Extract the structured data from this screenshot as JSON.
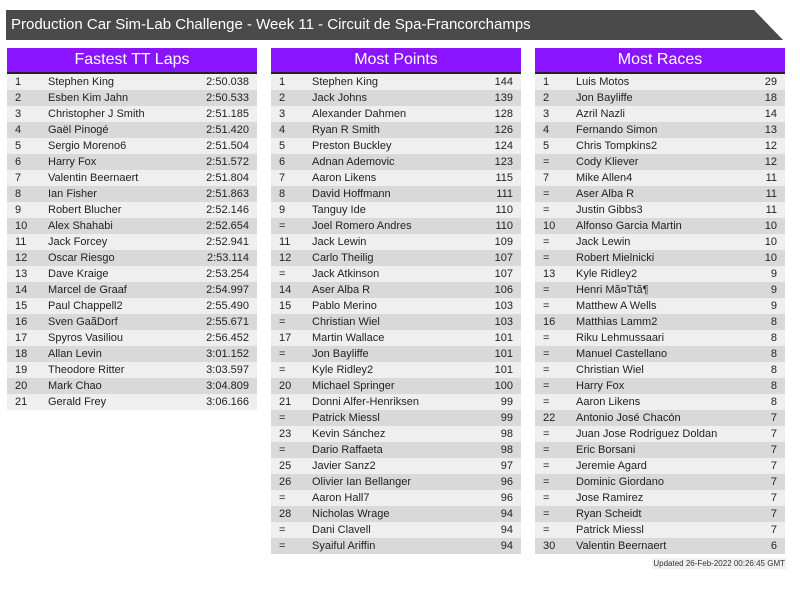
{
  "title": "Production Car Sim-Lab Challenge - Week 11 - Circuit de Spa-Francorchamps",
  "updated": "Updated 26-Feb-2022 00:26:45 GMT",
  "colors": {
    "header": "#8a14ff",
    "title_bar": "#4a4a4a"
  },
  "tables": [
    {
      "title": "Fastest TT Laps",
      "rows": [
        [
          "1",
          "Stephen King",
          "2:50.038"
        ],
        [
          "2",
          "Esben Kim Jahn",
          "2:50.533"
        ],
        [
          "3",
          "Christopher J Smith",
          "2:51.185"
        ],
        [
          "4",
          "Gaël Pinogé",
          "2:51.420"
        ],
        [
          "5",
          "Sergio Moreno6",
          "2:51.504"
        ],
        [
          "6",
          "Harry Fox",
          "2:51.572"
        ],
        [
          "7",
          "Valentin Beernaert",
          "2:51.804"
        ],
        [
          "8",
          "Ian Fisher",
          "2:51.863"
        ],
        [
          "9",
          "Robert Blucher",
          "2:52.146"
        ],
        [
          "10",
          "Alex Shahabi",
          "2:52.654"
        ],
        [
          "11",
          "Jack Forcey",
          "2:52.941"
        ],
        [
          "12",
          "Oscar Riesgo",
          "2:53.114"
        ],
        [
          "13",
          "Dave Kraige",
          "2:53.254"
        ],
        [
          "14",
          "Marcel de Graaf",
          "2:54.997"
        ],
        [
          "15",
          "Paul Chappell2",
          "2:55.490"
        ],
        [
          "16",
          "Sven GaãDorf",
          "2:55.671"
        ],
        [
          "17",
          "Spyros Vasiliou",
          "2:56.452"
        ],
        [
          "18",
          "Allan Levin",
          "3:01.152"
        ],
        [
          "19",
          "Theodore Ritter",
          "3:03.597"
        ],
        [
          "20",
          "Mark Chao",
          "3:04.809"
        ],
        [
          "21",
          "Gerald Frey",
          "3:06.166"
        ]
      ]
    },
    {
      "title": "Most Points",
      "rows": [
        [
          "1",
          "Stephen King",
          "144"
        ],
        [
          "2",
          "Jack Johns",
          "139"
        ],
        [
          "3",
          "Alexander Dahmen",
          "128"
        ],
        [
          "4",
          "Ryan R Smith",
          "126"
        ],
        [
          "5",
          "Preston Buckley",
          "124"
        ],
        [
          "6",
          "Adnan Ademovic",
          "123"
        ],
        [
          "7",
          "Aaron Likens",
          "115"
        ],
        [
          "8",
          "David Hoffmann",
          "111"
        ],
        [
          "9",
          "Tanguy Ide",
          "110"
        ],
        [
          "=",
          "Joel Romero Andres",
          "110"
        ],
        [
          "11",
          "Jack Lewin",
          "109"
        ],
        [
          "12",
          "Carlo Theilig",
          "107"
        ],
        [
          "=",
          "Jack Atkinson",
          "107"
        ],
        [
          "14",
          "Aser Alba R",
          "106"
        ],
        [
          "15",
          "Pablo Merino",
          "103"
        ],
        [
          "=",
          "Christian Wiel",
          "103"
        ],
        [
          "17",
          "Martin Wallace",
          "101"
        ],
        [
          "=",
          "Jon Bayliffe",
          "101"
        ],
        [
          "=",
          "Kyle Ridley2",
          "101"
        ],
        [
          "20",
          "Michael Springer",
          "100"
        ],
        [
          "21",
          "Donni Alfer-Henriksen",
          "99"
        ],
        [
          "=",
          "Patrick Miessl",
          "99"
        ],
        [
          "23",
          "Kevin Sánchez",
          "98"
        ],
        [
          "=",
          "Dario Raffaeta",
          "98"
        ],
        [
          "25",
          "Javier Sanz2",
          "97"
        ],
        [
          "26",
          "Olivier Ian Bellanger",
          "96"
        ],
        [
          "=",
          "Aaron Hall7",
          "96"
        ],
        [
          "28",
          "Nicholas Wrage",
          "94"
        ],
        [
          "=",
          "Dani Clavell",
          "94"
        ],
        [
          "=",
          "Syaiful Ariffin",
          "94"
        ]
      ]
    },
    {
      "title": "Most Races",
      "rows": [
        [
          "1",
          "Luis Motos",
          "29"
        ],
        [
          "2",
          "Jon Bayliffe",
          "18"
        ],
        [
          "3",
          "Azril Nazli",
          "14"
        ],
        [
          "4",
          "Fernando Simon",
          "13"
        ],
        [
          "5",
          "Chris Tompkins2",
          "12"
        ],
        [
          "=",
          "Cody Kliever",
          "12"
        ],
        [
          "7",
          "Mike Allen4",
          "11"
        ],
        [
          "=",
          "Aser Alba R",
          "11"
        ],
        [
          "=",
          "Justin Gibbs3",
          "11"
        ],
        [
          "10",
          "Alfonso Garcia Martin",
          "10"
        ],
        [
          "=",
          "Jack Lewin",
          "10"
        ],
        [
          "=",
          "Robert Mielnicki",
          "10"
        ],
        [
          "13",
          "Kyle Ridley2",
          "9"
        ],
        [
          "=",
          "Henri Mã¤Ttã¶",
          "9"
        ],
        [
          "=",
          "Matthew A Wells",
          "9"
        ],
        [
          "16",
          "Matthias Lamm2",
          "8"
        ],
        [
          "=",
          "Riku Lehmussaari",
          "8"
        ],
        [
          "=",
          "Manuel Castellano",
          "8"
        ],
        [
          "=",
          "Christian Wiel",
          "8"
        ],
        [
          "=",
          "Harry Fox",
          "8"
        ],
        [
          "=",
          "Aaron Likens",
          "8"
        ],
        [
          "22",
          "Antonio José Chacón",
          "7"
        ],
        [
          "=",
          "Juan Jose Rodriguez Doldan",
          "7"
        ],
        [
          "=",
          "Eric Borsani",
          "7"
        ],
        [
          "=",
          "Jeremie Agard",
          "7"
        ],
        [
          "=",
          "Dominic Giordano",
          "7"
        ],
        [
          "=",
          "Jose Ramirez",
          "7"
        ],
        [
          "=",
          "Ryan Scheidt",
          "7"
        ],
        [
          "=",
          "Patrick Miessl",
          "7"
        ],
        [
          "30",
          "Valentin Beernaert",
          "6"
        ]
      ]
    }
  ]
}
